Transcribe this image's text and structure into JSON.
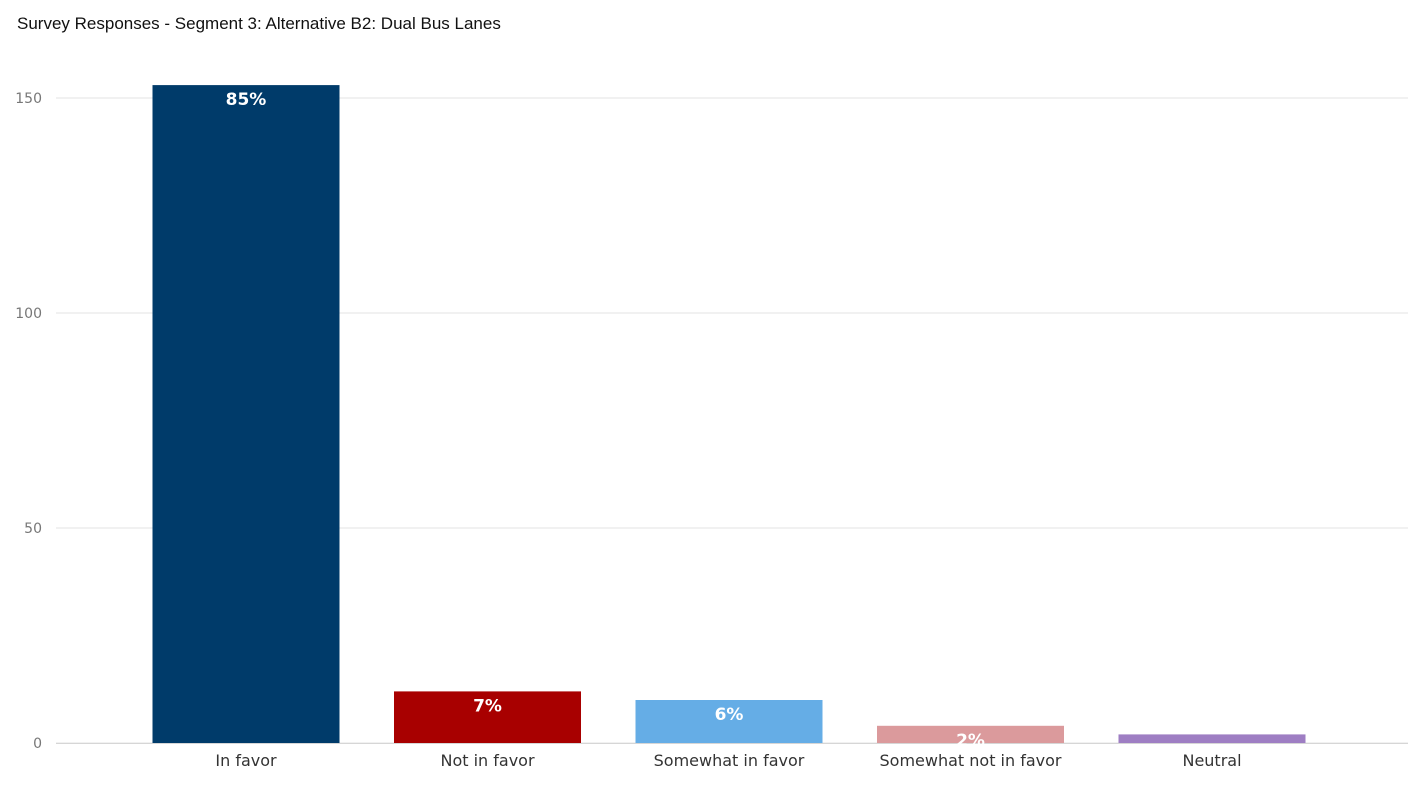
{
  "chart_data": {
    "type": "bar",
    "title": "Survey Responses - Segment 3: Alternative B2: Dual Bus Lanes",
    "xlabel": "",
    "ylabel": "",
    "categories": [
      "In favor",
      "Not in favor",
      "Somewhat in favor",
      "Somewhat not in favor",
      "Neutral"
    ],
    "values": [
      153,
      12,
      10,
      4,
      2
    ],
    "data_labels": [
      "85%",
      "7%",
      "6%",
      "2%",
      ""
    ],
    "colors": [
      "#003B6A",
      "#A80000",
      "#65ADE6",
      "#DB9A9C",
      "#9E7EC3"
    ],
    "ylim": [
      0,
      150
    ],
    "yticks": [
      0,
      50,
      100,
      150
    ],
    "grid": true,
    "legend": "none"
  }
}
